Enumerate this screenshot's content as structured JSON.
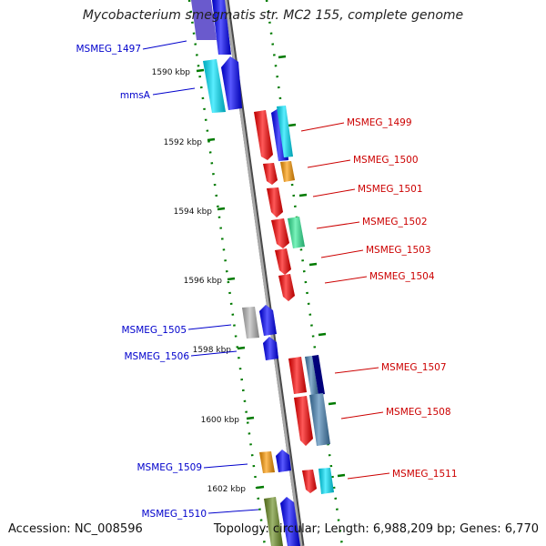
{
  "title": "Mycobacterium smegmatis str. MC2 155, complete genome",
  "footer": {
    "accession": "Accession: NC_008596",
    "summary": "Topology: circular; Length: 6,988,209 bp; Genes: 6,770"
  },
  "colors": {
    "backbone": "#8c8c8c",
    "tick": "#007a00",
    "left_label": "#0000cc",
    "right_label": "#cc0000",
    "blue": "#0000ff",
    "red": "#ff0000",
    "cyan": "#00e5ff",
    "orange": "#ff9900",
    "aqua_green": "#33ee99",
    "gray": "#b8b8b8",
    "steel": "#4682b4",
    "navy": "#00007a",
    "olive": "#6b8e23",
    "slate": "#6a5acd"
  },
  "kbp_ticks": [
    "1590 kbp",
    "1592 kbp",
    "1594 kbp",
    "1596 kbp",
    "1598 kbp",
    "1600 kbp",
    "1602 kbp"
  ],
  "left_labels": [
    "MSMEG_1497",
    "mmsA",
    "MSMEG_1505",
    "MSMEG_1506",
    "MSMEG_1509",
    "MSMEG_1510"
  ],
  "right_labels": [
    "MSMEG_1499",
    "MSMEG_1500",
    "MSMEG_1501",
    "MSMEG_1502",
    "MSMEG_1503",
    "MSMEG_1504",
    "MSMEG_1507",
    "MSMEG_1508",
    "MSMEG_1511"
  ]
}
